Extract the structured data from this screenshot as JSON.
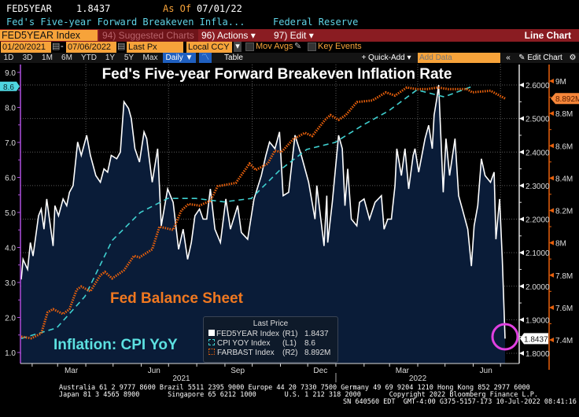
{
  "header": {
    "ticker": "FED5YEAR",
    "last_value": "1.8437",
    "as_of_label": "As Of",
    "as_of_date": "07/01/22",
    "description": "Fed's Five-year Forward Breakeven Infla...",
    "source": "Federal Reserve"
  },
  "toolbar": {
    "security": "FED5YEAR Index",
    "suggested_charts": "94) Suggested Charts",
    "actions": "96) Actions ▾",
    "edit": "97) Edit ▾",
    "chart_type": "Line Chart",
    "start_date": "01/20/2021",
    "date_sep": "-",
    "end_date": "07/06/2022",
    "field": "Last Px",
    "currency": "Local CCY",
    "mov_avgs": "Mov Avgs",
    "key_events": "Key Events",
    "periods": [
      "1D",
      "3D",
      "1M",
      "6M",
      "YTD",
      "1Y",
      "5Y",
      "Max"
    ],
    "frequency": "Daily ▼",
    "table": "Table",
    "quick_add": "+ Quick-Add ▾",
    "add_data_placeholder": "Add Data",
    "collapse": "«",
    "edit_chart": "Edit Chart",
    "settings_icon": "gear-icon"
  },
  "colors": {
    "fed5year": "#ffffff",
    "cpi": "#3fd0d0",
    "farbast": "#e8600c",
    "area_fill": "#0a1c38",
    "highlight_circle": "#e040e0",
    "left_axis": "#b050e0"
  },
  "chart_data": {
    "type": "line",
    "title": "Fed's Five-year Forward Breakeven Inflation Rate",
    "annotations": [
      "Fed Balance Sheet",
      "Inflation: CPI YoY"
    ],
    "x_range": [
      "2021-01-20",
      "2022-07-06"
    ],
    "x_ticks": [
      {
        "label": "Mar",
        "date": "2021-03-16"
      },
      {
        "label": "Jun",
        "date": "2021-06-15"
      },
      {
        "label": "Sep",
        "date": "2021-09-15"
      },
      {
        "label": "Dec",
        "date": "2021-12-15"
      },
      {
        "label": "Mar",
        "date": "2022-03-15"
      },
      {
        "label": "Jun",
        "date": "2022-06-15"
      }
    ],
    "x_years": [
      {
        "label": "2021",
        "date": "2021-07-15"
      },
      {
        "label": "2022",
        "date": "2022-04-01"
      }
    ],
    "grid": true,
    "axes": {
      "left": {
        "ylim": [
          1.0,
          9.0
        ],
        "ticks": [
          "1.0",
          "2.0",
          "3.0",
          "4.0",
          "5.0",
          "6.0",
          "7.0",
          "8.0",
          "9.0"
        ],
        "last_tag": "8.6"
      },
      "right1": {
        "ylim": [
          1.8,
          2.6
        ],
        "ticks": [
          "1.8000",
          "1.9000",
          "2.0000",
          "2.1000",
          "2.2000",
          "2.3000",
          "2.4000",
          "2.5000",
          "2.6000"
        ],
        "last_tag": "1.8437"
      },
      "right2": {
        "ylim": [
          7.4,
          9.0
        ],
        "ticks": [
          "7.4M",
          "7.6M",
          "7.8M",
          "8M",
          "8.2M",
          "8.4M",
          "8.6M",
          "8.8M",
          "9M"
        ],
        "last_tag": "8.892M"
      }
    },
    "legend": {
      "title": "Last Price",
      "placement": "bottom-center",
      "entries": [
        {
          "name": "FED5YEAR Index",
          "axis": "(R1)",
          "value": "1.8437"
        },
        {
          "name": "CPI YOY Index",
          "axis": "(L1)",
          "value": "8.6"
        },
        {
          "name": "FARBAST Index",
          "axis": "(R2)",
          "value": "8.892M"
        }
      ]
    },
    "series": [
      {
        "name": "FED5YEAR Index",
        "axis": "right1",
        "style": "solid-area",
        "points": [
          [
            "2021-01-20",
            2.02
          ],
          [
            "2021-01-22",
            2.08
          ],
          [
            "2021-01-27",
            2.05
          ],
          [
            "2021-01-30",
            2.13
          ],
          [
            "2021-02-02",
            2.09
          ],
          [
            "2021-02-08",
            2.21
          ],
          [
            "2021-02-11",
            2.23
          ],
          [
            "2021-02-14",
            2.17
          ],
          [
            "2021-02-17",
            2.26
          ],
          [
            "2021-02-24",
            2.12
          ],
          [
            "2021-02-26",
            2.24
          ],
          [
            "2021-03-02",
            2.21
          ],
          [
            "2021-03-07",
            2.26
          ],
          [
            "2021-03-11",
            2.24
          ],
          [
            "2021-03-14",
            2.28
          ],
          [
            "2021-03-18",
            2.3
          ],
          [
            "2021-03-23",
            2.43
          ],
          [
            "2021-03-27",
            2.39
          ],
          [
            "2021-04-02",
            2.45
          ],
          [
            "2021-04-06",
            2.39
          ],
          [
            "2021-04-12",
            2.33
          ],
          [
            "2021-04-17",
            2.31
          ],
          [
            "2021-04-21",
            2.35
          ],
          [
            "2021-04-25",
            2.34
          ],
          [
            "2021-04-29",
            2.39
          ],
          [
            "2021-05-05",
            2.38
          ],
          [
            "2021-05-09",
            2.4
          ],
          [
            "2021-05-13",
            2.55
          ],
          [
            "2021-05-18",
            2.53
          ],
          [
            "2021-05-21",
            2.5
          ],
          [
            "2021-05-25",
            2.41
          ],
          [
            "2021-05-30",
            2.37
          ],
          [
            "2021-06-04",
            2.46
          ],
          [
            "2021-06-07",
            2.44
          ],
          [
            "2021-06-13",
            2.31
          ],
          [
            "2021-06-19",
            2.41
          ],
          [
            "2021-06-23",
            2.18
          ],
          [
            "2021-06-30",
            2.29
          ],
          [
            "2021-07-06",
            2.25
          ],
          [
            "2021-07-12",
            2.11
          ],
          [
            "2021-07-17",
            2.17
          ],
          [
            "2021-07-22",
            2.08
          ],
          [
            "2021-07-26",
            2.13
          ],
          [
            "2021-07-30",
            2.21
          ],
          [
            "2021-08-04",
            2.23
          ],
          [
            "2021-08-08",
            2.2
          ],
          [
            "2021-08-12",
            2.2
          ],
          [
            "2021-08-16",
            2.29
          ],
          [
            "2021-08-21",
            2.17
          ],
          [
            "2021-08-27",
            2.13
          ],
          [
            "2021-09-02",
            2.26
          ],
          [
            "2021-09-07",
            2.17
          ],
          [
            "2021-09-15",
            2.24
          ],
          [
            "2021-09-19",
            2.16
          ],
          [
            "2021-09-26",
            2.14
          ],
          [
            "2021-10-03",
            2.26
          ],
          [
            "2021-10-11",
            2.33
          ],
          [
            "2021-10-16",
            2.39
          ],
          [
            "2021-10-20",
            2.43
          ],
          [
            "2021-10-26",
            2.41
          ],
          [
            "2021-10-31",
            2.46
          ],
          [
            "2021-11-04",
            2.27
          ],
          [
            "2021-11-10",
            2.28
          ],
          [
            "2021-11-17",
            2.45
          ],
          [
            "2021-11-24",
            2.39
          ],
          [
            "2021-12-02",
            2.31
          ],
          [
            "2021-12-09",
            2.2
          ],
          [
            "2021-12-11",
            2.3
          ],
          [
            "2021-12-19",
            2.12
          ],
          [
            "2021-12-22",
            2.27
          ],
          [
            "2021-12-23",
            2.13
          ],
          [
            "2021-12-28",
            2.25
          ],
          [
            "2022-01-04",
            2.45
          ],
          [
            "2022-01-08",
            2.41
          ],
          [
            "2022-01-11",
            2.24
          ],
          [
            "2022-01-14",
            2.35
          ],
          [
            "2022-01-18",
            2.2
          ],
          [
            "2022-01-24",
            2.18
          ],
          [
            "2022-01-27",
            2.25
          ],
          [
            "2022-02-01",
            2.26
          ],
          [
            "2022-02-07",
            2.2
          ],
          [
            "2022-02-13",
            2.25
          ],
          [
            "2022-02-20",
            2.27
          ],
          [
            "2022-02-23",
            2.17
          ],
          [
            "2022-02-27",
            2.2
          ],
          [
            "2022-03-03",
            2.2
          ],
          [
            "2022-03-07",
            2.3
          ],
          [
            "2022-03-09",
            2.41
          ],
          [
            "2022-03-14",
            2.33
          ],
          [
            "2022-03-18",
            2.41
          ],
          [
            "2022-03-22",
            2.29
          ],
          [
            "2022-03-27",
            2.39
          ],
          [
            "2022-03-29",
            2.41
          ],
          [
            "2022-04-02",
            2.34
          ],
          [
            "2022-04-09",
            2.44
          ],
          [
            "2022-04-13",
            2.48
          ],
          [
            "2022-04-17",
            2.41
          ],
          [
            "2022-04-19",
            2.51
          ],
          [
            "2022-04-22",
            2.56
          ],
          [
            "2022-04-24",
            2.6
          ],
          [
            "2022-04-29",
            2.28
          ],
          [
            "2022-05-02",
            2.44
          ],
          [
            "2022-05-06",
            2.33
          ],
          [
            "2022-05-12",
            2.44
          ],
          [
            "2022-05-16",
            2.27
          ],
          [
            "2022-05-20",
            2.23
          ],
          [
            "2022-05-26",
            2.17
          ],
          [
            "2022-05-30",
            2.06
          ],
          [
            "2022-06-02",
            2.18
          ],
          [
            "2022-06-06",
            2.24
          ],
          [
            "2022-06-10",
            2.38
          ],
          [
            "2022-06-14",
            2.33
          ],
          [
            "2022-06-20",
            2.31
          ],
          [
            "2022-06-24",
            2.34
          ],
          [
            "2022-06-26",
            2.14
          ],
          [
            "2022-06-30",
            2.26
          ],
          [
            "2022-07-03",
            2.08
          ],
          [
            "2022-07-06",
            1.8437
          ]
        ]
      },
      {
        "name": "CPI YOY Index",
        "axis": "left",
        "style": "dashed",
        "points": [
          [
            "2021-01-20",
            1.4
          ],
          [
            "2021-02-28",
            1.7
          ],
          [
            "2021-03-31",
            2.6
          ],
          [
            "2021-04-30",
            4.2
          ],
          [
            "2021-05-31",
            5.0
          ],
          [
            "2021-06-30",
            5.4
          ],
          [
            "2021-07-31",
            5.4
          ],
          [
            "2021-08-31",
            5.3
          ],
          [
            "2021-09-30",
            5.4
          ],
          [
            "2021-10-31",
            6.2
          ],
          [
            "2021-11-30",
            6.8
          ],
          [
            "2021-12-31",
            7.0
          ],
          [
            "2022-01-31",
            7.5
          ],
          [
            "2022-02-28",
            7.9
          ],
          [
            "2022-03-31",
            8.5
          ],
          [
            "2022-04-30",
            8.3
          ],
          [
            "2022-05-31",
            8.6
          ]
        ]
      },
      {
        "name": "FARBAST Index",
        "axis": "right2",
        "style": "dotted",
        "points": [
          [
            "2021-01-20",
            7.42
          ],
          [
            "2021-01-31",
            7.41
          ],
          [
            "2021-02-11",
            7.44
          ],
          [
            "2021-02-18",
            7.57
          ],
          [
            "2021-02-24",
            7.59
          ],
          [
            "2021-03-07",
            7.56
          ],
          [
            "2021-03-14",
            7.59
          ],
          [
            "2021-03-22",
            7.71
          ],
          [
            "2021-03-27",
            7.73
          ],
          [
            "2021-04-06",
            7.7
          ],
          [
            "2021-04-17",
            7.8
          ],
          [
            "2021-04-22",
            7.82
          ],
          [
            "2021-04-30",
            7.78
          ],
          [
            "2021-05-13",
            7.83
          ],
          [
            "2021-05-24",
            7.92
          ],
          [
            "2021-05-30",
            7.91
          ],
          [
            "2021-06-13",
            7.96
          ],
          [
            "2021-06-21",
            8.1
          ],
          [
            "2021-07-06",
            8.08
          ],
          [
            "2021-07-15",
            8.2
          ],
          [
            "2021-07-23",
            8.24
          ],
          [
            "2021-08-04",
            8.23
          ],
          [
            "2021-08-16",
            8.26
          ],
          [
            "2021-08-24",
            8.35
          ],
          [
            "2021-09-13",
            8.37
          ],
          [
            "2021-09-28",
            8.49
          ],
          [
            "2021-10-05",
            8.45
          ],
          [
            "2021-10-18",
            8.49
          ],
          [
            "2021-10-26",
            8.57
          ],
          [
            "2021-11-02",
            8.56
          ],
          [
            "2021-11-15",
            8.64
          ],
          [
            "2021-11-28",
            8.68
          ],
          [
            "2021-12-06",
            8.66
          ],
          [
            "2021-12-20",
            8.76
          ],
          [
            "2021-12-26",
            8.79
          ],
          [
            "2022-01-04",
            8.76
          ],
          [
            "2022-01-12",
            8.79
          ],
          [
            "2022-01-24",
            8.87
          ],
          [
            "2022-02-10",
            8.88
          ],
          [
            "2022-02-25",
            8.93
          ],
          [
            "2022-03-07",
            8.91
          ],
          [
            "2022-03-20",
            8.96
          ],
          [
            "2022-03-31",
            8.95
          ],
          [
            "2022-04-11",
            8.95
          ],
          [
            "2022-04-23",
            8.96
          ],
          [
            "2022-05-05",
            8.95
          ],
          [
            "2022-05-25",
            8.95
          ],
          [
            "2022-05-31",
            8.93
          ],
          [
            "2022-06-20",
            8.94
          ],
          [
            "2022-07-06",
            8.892
          ]
        ]
      }
    ]
  },
  "footer": {
    "line1": "Australia 61 2 9777 8600 Brazil 5511 2395 9000 Europe 44 20 7330 7500 Germany 49 69 9204 1210 Hong Kong 852 2977 6000",
    "line2": "Japan 81 3 4565 8900       Singapore 65 6212 1000       U.S. 1 212 318 2000       Copyright 2022 Bloomberg Finance L.P.",
    "line3": "SN 640560 EDT  GMT-4:00 G375-5157-173 10-Jul-2022 08:41:16"
  }
}
